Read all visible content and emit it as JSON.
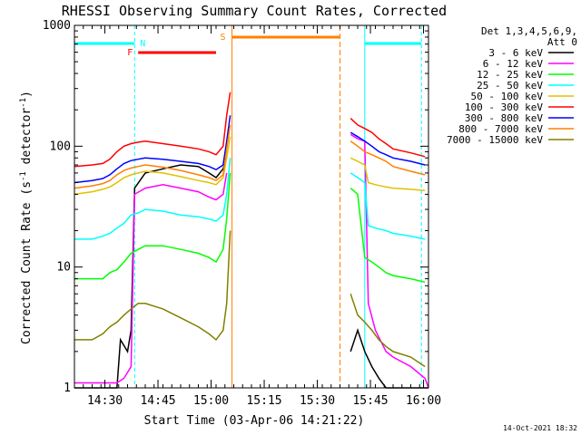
{
  "chart_data": {
    "type": "line",
    "title": "RHESSI Observing Summary Count Rates, Corrected",
    "xlabel": "Start Time (03-Apr-06 14:21:22)",
    "ylabel_main": "Corrected Count Rate (s",
    "ylabel_sup1": "-1",
    "ylabel_mid": " detector",
    "ylabel_sup2": "-1",
    "ylabel_end": ")",
    "timestamp": "14-Oct-2021 18:32",
    "y_scale": "log",
    "ylim": [
      1,
      1000
    ],
    "xlim_minutes": [
      0,
      100
    ],
    "x_tick_labels": [
      "14:30",
      "14:45",
      "15:00",
      "15:15",
      "15:30",
      "15:45",
      "16:00"
    ],
    "x_tick_minutes": [
      8.6,
      23.6,
      38.6,
      53.6,
      68.6,
      83.6,
      98.6
    ],
    "y_tick_labels": [
      "1",
      "10",
      "100",
      "1000"
    ],
    "y_tick_values": [
      1,
      10,
      100,
      1000
    ],
    "legend_header": [
      "Det 1,3,4,5,6,9,",
      "Att 0"
    ],
    "legend_placement": "right",
    "series": [
      {
        "name": "3 - 6 keV",
        "color": "#000000",
        "points": [
          [
            0,
            1
          ],
          [
            12,
            1
          ],
          [
            13,
            2.5
          ],
          [
            15,
            2
          ],
          [
            16,
            3
          ],
          [
            17,
            45
          ],
          [
            20,
            60
          ],
          [
            25,
            65
          ],
          [
            30,
            70
          ],
          [
            35,
            68
          ],
          [
            38,
            60
          ],
          [
            40,
            55
          ],
          [
            42,
            65
          ],
          [
            43,
            80
          ],
          [
            75,
            null
          ],
          [
            78,
            2
          ],
          [
            80,
            3
          ],
          [
            82,
            2
          ],
          [
            84,
            1.5
          ],
          [
            86,
            1.2
          ],
          [
            88,
            1
          ],
          [
            100,
            1
          ]
        ]
      },
      {
        "name": "6 - 12 keV",
        "color": "#ff00ff",
        "points": [
          [
            0,
            1.1
          ],
          [
            12,
            1.1
          ],
          [
            14,
            1.2
          ],
          [
            16,
            1.5
          ],
          [
            17,
            40
          ],
          [
            20,
            45
          ],
          [
            25,
            48
          ],
          [
            30,
            45
          ],
          [
            35,
            42
          ],
          [
            38,
            38
          ],
          [
            40,
            36
          ],
          [
            42,
            40
          ],
          [
            43,
            60
          ],
          [
            75,
            null
          ],
          [
            78,
            125
          ],
          [
            80,
            115
          ],
          [
            82,
            110
          ],
          [
            83,
            5
          ],
          [
            85,
            3
          ],
          [
            88,
            2
          ],
          [
            90,
            1.8
          ],
          [
            95,
            1.5
          ],
          [
            99,
            1.2
          ],
          [
            100,
            1
          ]
        ]
      },
      {
        "name": "12 - 25 keV",
        "color": "#00ff00",
        "points": [
          [
            0,
            8
          ],
          [
            5,
            8
          ],
          [
            8,
            8
          ],
          [
            10,
            9
          ],
          [
            12,
            9.5
          ],
          [
            14,
            11
          ],
          [
            16,
            13
          ],
          [
            18,
            14
          ],
          [
            20,
            15
          ],
          [
            25,
            15
          ],
          [
            30,
            14
          ],
          [
            35,
            13
          ],
          [
            38,
            12
          ],
          [
            40,
            11
          ],
          [
            42,
            14
          ],
          [
            43,
            25
          ],
          [
            44,
            60
          ],
          [
            75,
            null
          ],
          [
            78,
            45
          ],
          [
            80,
            40
          ],
          [
            82,
            12
          ],
          [
            84,
            11
          ],
          [
            86,
            10
          ],
          [
            88,
            9
          ],
          [
            90,
            8.5
          ],
          [
            95,
            8
          ],
          [
            99,
            7.5
          ]
        ]
      },
      {
        "name": "25 - 50 keV",
        "color": "#00ffff",
        "points": [
          [
            0,
            17
          ],
          [
            5,
            17
          ],
          [
            8,
            18
          ],
          [
            10,
            19
          ],
          [
            12,
            21
          ],
          [
            14,
            23
          ],
          [
            16,
            27
          ],
          [
            18,
            28
          ],
          [
            20,
            30
          ],
          [
            25,
            29
          ],
          [
            30,
            27
          ],
          [
            35,
            26
          ],
          [
            38,
            25
          ],
          [
            40,
            24
          ],
          [
            42,
            27
          ],
          [
            43,
            40
          ],
          [
            44,
            80
          ],
          [
            75,
            null
          ],
          [
            78,
            60
          ],
          [
            80,
            55
          ],
          [
            82,
            50
          ],
          [
            83,
            22
          ],
          [
            85,
            21
          ],
          [
            88,
            20
          ],
          [
            90,
            19
          ],
          [
            95,
            18
          ],
          [
            99,
            17
          ]
        ]
      },
      {
        "name": "50 - 100 keV",
        "color": "#e0c000",
        "points": [
          [
            0,
            40
          ],
          [
            5,
            42
          ],
          [
            8,
            44
          ],
          [
            10,
            46
          ],
          [
            12,
            50
          ],
          [
            14,
            55
          ],
          [
            16,
            58
          ],
          [
            18,
            60
          ],
          [
            20,
            62
          ],
          [
            25,
            60
          ],
          [
            30,
            56
          ],
          [
            35,
            52
          ],
          [
            38,
            50
          ],
          [
            40,
            48
          ],
          [
            42,
            55
          ],
          [
            43,
            80
          ],
          [
            44,
            120
          ],
          [
            75,
            null
          ],
          [
            78,
            80
          ],
          [
            80,
            75
          ],
          [
            82,
            70
          ],
          [
            83,
            50
          ],
          [
            85,
            48
          ],
          [
            88,
            46
          ],
          [
            90,
            45
          ],
          [
            95,
            44
          ],
          [
            99,
            43
          ]
        ]
      },
      {
        "name": "100 - 300 keV",
        "color": "#ff0000",
        "points": [
          [
            0,
            68
          ],
          [
            5,
            70
          ],
          [
            8,
            72
          ],
          [
            10,
            78
          ],
          [
            12,
            90
          ],
          [
            14,
            100
          ],
          [
            16,
            105
          ],
          [
            18,
            108
          ],
          [
            20,
            110
          ],
          [
            25,
            105
          ],
          [
            30,
            100
          ],
          [
            35,
            95
          ],
          [
            38,
            90
          ],
          [
            40,
            85
          ],
          [
            42,
            100
          ],
          [
            43,
            180
          ],
          [
            44,
            280
          ],
          [
            75,
            null
          ],
          [
            78,
            170
          ],
          [
            80,
            150
          ],
          [
            82,
            140
          ],
          [
            84,
            130
          ],
          [
            86,
            115
          ],
          [
            88,
            105
          ],
          [
            90,
            95
          ],
          [
            95,
            88
          ],
          [
            99,
            82
          ]
        ]
      },
      {
        "name": "300 - 800 keV",
        "color": "#0000ff",
        "points": [
          [
            0,
            50
          ],
          [
            5,
            52
          ],
          [
            8,
            54
          ],
          [
            10,
            58
          ],
          [
            12,
            65
          ],
          [
            14,
            72
          ],
          [
            16,
            76
          ],
          [
            18,
            78
          ],
          [
            20,
            80
          ],
          [
            25,
            78
          ],
          [
            30,
            75
          ],
          [
            35,
            72
          ],
          [
            38,
            68
          ],
          [
            40,
            64
          ],
          [
            42,
            70
          ],
          [
            43,
            110
          ],
          [
            44,
            180
          ],
          [
            75,
            null
          ],
          [
            78,
            130
          ],
          [
            80,
            120
          ],
          [
            82,
            110
          ],
          [
            84,
            100
          ],
          [
            86,
            90
          ],
          [
            88,
            85
          ],
          [
            90,
            80
          ],
          [
            95,
            75
          ],
          [
            99,
            70
          ]
        ]
      },
      {
        "name": "800 - 7000 keV",
        "color": "#ff8000",
        "points": [
          [
            0,
            45
          ],
          [
            5,
            47
          ],
          [
            8,
            49
          ],
          [
            10,
            52
          ],
          [
            12,
            58
          ],
          [
            14,
            63
          ],
          [
            16,
            66
          ],
          [
            18,
            68
          ],
          [
            20,
            70
          ],
          [
            25,
            67
          ],
          [
            30,
            63
          ],
          [
            35,
            58
          ],
          [
            38,
            55
          ],
          [
            40,
            52
          ],
          [
            42,
            58
          ],
          [
            43,
            95
          ],
          [
            44,
            150
          ],
          [
            75,
            null
          ],
          [
            78,
            110
          ],
          [
            80,
            100
          ],
          [
            82,
            90
          ],
          [
            84,
            85
          ],
          [
            86,
            80
          ],
          [
            88,
            75
          ],
          [
            90,
            68
          ],
          [
            95,
            62
          ],
          [
            99,
            58
          ]
        ]
      },
      {
        "name": "7000 - 15000 keV",
        "color": "#808000",
        "points": [
          [
            0,
            2.5
          ],
          [
            5,
            2.5
          ],
          [
            8,
            2.8
          ],
          [
            10,
            3.2
          ],
          [
            12,
            3.5
          ],
          [
            14,
            4
          ],
          [
            16,
            4.5
          ],
          [
            18,
            5
          ],
          [
            20,
            5
          ],
          [
            25,
            4.5
          ],
          [
            30,
            3.8
          ],
          [
            35,
            3.2
          ],
          [
            38,
            2.8
          ],
          [
            40,
            2.5
          ],
          [
            42,
            3
          ],
          [
            43,
            5
          ],
          [
            44,
            20
          ],
          [
            75,
            null
          ],
          [
            78,
            6
          ],
          [
            80,
            4
          ],
          [
            82,
            3.5
          ],
          [
            84,
            3
          ],
          [
            86,
            2.5
          ],
          [
            88,
            2.2
          ],
          [
            90,
            2
          ],
          [
            95,
            1.8
          ],
          [
            99,
            1.5
          ]
        ]
      }
    ],
    "annotations": {
      "night_label": "N",
      "flare_label": "F",
      "saa_label": "S"
    }
  }
}
